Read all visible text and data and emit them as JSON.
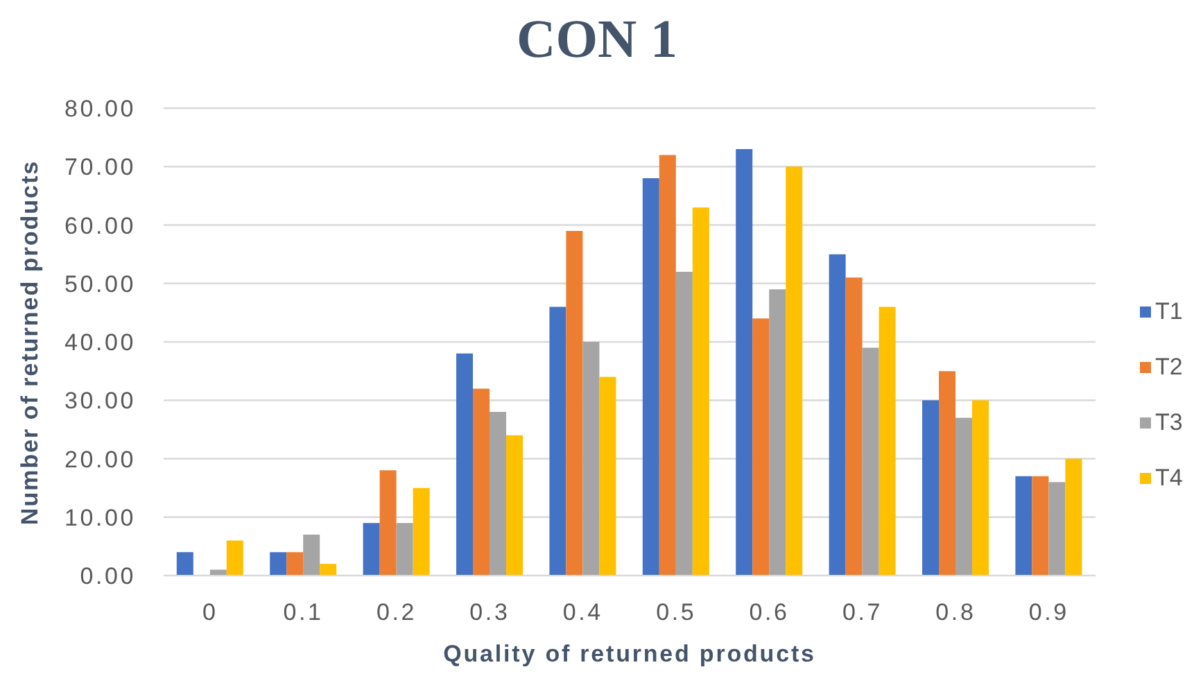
{
  "chart_data": {
    "type": "bar",
    "title": "CON 1",
    "xlabel": "Quality of returned products",
    "ylabel": "Number of returned products",
    "categories": [
      "0",
      "0.1",
      "0.2",
      "0.3",
      "0.4",
      "0.5",
      "0.6",
      "0.7",
      "0.8",
      "0.9"
    ],
    "series": [
      {
        "name": "T1",
        "color": "#4472c4",
        "values": [
          4,
          4,
          9,
          38,
          46,
          68,
          73,
          55,
          30,
          17
        ]
      },
      {
        "name": "T2",
        "color": "#ed7d31",
        "values": [
          0,
          4,
          18,
          32,
          59,
          72,
          44,
          51,
          35,
          17
        ]
      },
      {
        "name": "T3",
        "color": "#a5a5a5",
        "values": [
          1,
          7,
          9,
          28,
          40,
          52,
          49,
          39,
          27,
          16
        ]
      },
      {
        "name": "T4",
        "color": "#ffc000",
        "values": [
          6,
          2,
          15,
          24,
          34,
          63,
          70,
          46,
          30,
          20
        ]
      }
    ],
    "ylim": [
      0,
      80
    ],
    "yticks": [
      {
        "value": 0,
        "label": "0.00"
      },
      {
        "value": 10,
        "label": "10.00"
      },
      {
        "value": 20,
        "label": "20.00"
      },
      {
        "value": 30,
        "label": "30.00"
      },
      {
        "value": 40,
        "label": "40.00"
      },
      {
        "value": 50,
        "label": "50.00"
      },
      {
        "value": 60,
        "label": "60.00"
      },
      {
        "value": 70,
        "label": "70.00"
      },
      {
        "value": 80,
        "label": "80.00"
      }
    ],
    "grid": "y",
    "legend": "right"
  }
}
